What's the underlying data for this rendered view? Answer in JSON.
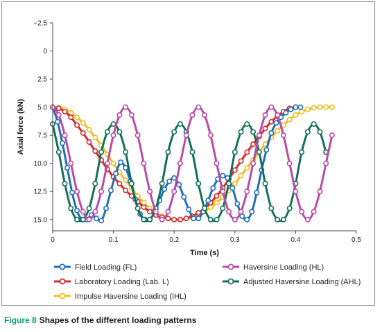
{
  "caption": {
    "label": "Figure 8",
    "text": "Shapes of the different loading patterns"
  },
  "chart_data": {
    "type": "line",
    "xlabel": "Time (s)",
    "ylabel": "Axial force (kN)",
    "xlim": [
      0,
      0.5
    ],
    "ylim": [
      -2.5,
      16.0
    ],
    "y_inverted": true,
    "x_ticks": [
      "0",
      "0.1",
      "0.2",
      "0.3",
      "0.4",
      "0.5"
    ],
    "y_ticks": [
      "−2.5",
      "0",
      "2.5",
      "5.0",
      "7.5",
      "10.0",
      "12.5",
      "15.0"
    ],
    "grid": false,
    "legend_position": "bottom",
    "series": [
      {
        "name": "Field Loading (FL)",
        "color": "#1f6eb5",
        "x": [
          0.0,
          0.008,
          0.016,
          0.024,
          0.032,
          0.04,
          0.048,
          0.056,
          0.064,
          0.072,
          0.08,
          0.088,
          0.096,
          0.104,
          0.112,
          0.12,
          0.128,
          0.136,
          0.144,
          0.152,
          0.16,
          0.168,
          0.176,
          0.184,
          0.192,
          0.2,
          0.208,
          0.216,
          0.224,
          0.232,
          0.24,
          0.248,
          0.256,
          0.264,
          0.272,
          0.28,
          0.288,
          0.296,
          0.304,
          0.312,
          0.32,
          0.328,
          0.336,
          0.344,
          0.352,
          0.36,
          0.368,
          0.376,
          0.384,
          0.392,
          0.4,
          0.408
        ],
        "y": [
          5.0,
          6.3,
          8.2,
          10.4,
          12.6,
          14.2,
          15.0,
          15.0,
          14.6,
          14.9,
          15.1,
          14.0,
          12.4,
          10.9,
          9.9,
          10.4,
          11.6,
          13.2,
          14.5,
          15.0,
          15.0,
          14.3,
          13.3,
          12.3,
          11.6,
          11.3,
          11.9,
          13.0,
          14.1,
          14.9,
          14.9,
          14.3,
          13.3,
          12.2,
          11.4,
          11.1,
          11.3,
          12.2,
          13.6,
          14.7,
          15.0,
          14.3,
          12.6,
          10.6,
          8.8,
          7.3,
          6.4,
          5.9,
          5.5,
          5.2,
          5.0,
          5.0
        ]
      },
      {
        "name": "Laboratory Loading (Lab. L)",
        "color": "#d42a2a",
        "x": [
          0.0,
          0.01,
          0.02,
          0.03,
          0.04,
          0.05,
          0.06,
          0.07,
          0.08,
          0.09,
          0.1,
          0.11,
          0.12,
          0.13,
          0.14,
          0.15,
          0.16,
          0.17,
          0.18,
          0.19,
          0.2,
          0.21,
          0.22,
          0.23,
          0.24,
          0.25,
          0.26,
          0.27,
          0.28,
          0.29,
          0.3,
          0.31,
          0.32,
          0.33,
          0.34,
          0.35,
          0.36,
          0.37,
          0.38,
          0.39,
          0.4
        ],
        "y": [
          5.0,
          5.1,
          5.4,
          5.9,
          6.6,
          7.3,
          8.1,
          8.9,
          9.7,
          10.5,
          11.2,
          11.8,
          12.4,
          12.9,
          13.4,
          13.9,
          14.3,
          14.6,
          14.8,
          14.9,
          15.0,
          15.0,
          14.9,
          14.7,
          14.4,
          14.0,
          13.5,
          12.9,
          12.2,
          11.4,
          10.6,
          9.8,
          9.0,
          8.3,
          7.6,
          6.9,
          6.3,
          5.8,
          5.4,
          5.1,
          5.0
        ]
      },
      {
        "name": "Impulse Haversine Loading (IHL)",
        "color": "#f2be1c",
        "x": [
          0.0,
          0.01,
          0.02,
          0.03,
          0.04,
          0.05,
          0.06,
          0.07,
          0.08,
          0.09,
          0.1,
          0.11,
          0.12,
          0.13,
          0.14,
          0.15,
          0.16,
          0.17,
          0.18,
          0.19,
          0.2,
          0.21,
          0.22,
          0.23,
          0.24,
          0.25,
          0.26,
          0.27,
          0.28,
          0.29,
          0.3,
          0.31,
          0.32,
          0.33,
          0.34,
          0.35,
          0.36,
          0.37,
          0.38,
          0.39,
          0.4,
          0.41,
          0.42,
          0.43,
          0.44,
          0.45,
          0.46
        ],
        "y": [
          5.0,
          5.05,
          5.2,
          5.5,
          5.9,
          6.4,
          7.0,
          7.7,
          8.4,
          9.2,
          10.0,
          10.8,
          11.5,
          12.2,
          12.9,
          13.5,
          14.0,
          14.4,
          14.7,
          14.9,
          15.0,
          15.0,
          14.9,
          14.8,
          14.6,
          14.3,
          13.9,
          13.5,
          13.0,
          12.4,
          11.8,
          11.1,
          10.4,
          9.7,
          9.0,
          8.3,
          7.7,
          7.1,
          6.6,
          6.1,
          5.7,
          5.4,
          5.2,
          5.05,
          5.0,
          5.0,
          5.0
        ]
      },
      {
        "name": "Haversine Loading (HL)",
        "color": "#b94aa6",
        "x": [
          0.0,
          0.01,
          0.02,
          0.03,
          0.04,
          0.05,
          0.06,
          0.07,
          0.08,
          0.09,
          0.1,
          0.11,
          0.12,
          0.13,
          0.14,
          0.15,
          0.16,
          0.17,
          0.18,
          0.19,
          0.2,
          0.21,
          0.22,
          0.23,
          0.24,
          0.25,
          0.26,
          0.27,
          0.28,
          0.29,
          0.3,
          0.31,
          0.32,
          0.33,
          0.34,
          0.35,
          0.36,
          0.37,
          0.38,
          0.39,
          0.4,
          0.41,
          0.42,
          0.43,
          0.44,
          0.45,
          0.46
        ],
        "y": [
          5.0,
          5.7,
          7.5,
          10.0,
          12.5,
          14.3,
          15.0,
          14.3,
          12.5,
          10.0,
          7.5,
          5.7,
          5.0,
          5.7,
          7.5,
          10.0,
          12.5,
          14.3,
          15.0,
          14.3,
          12.5,
          10.0,
          7.5,
          5.7,
          5.0,
          5.7,
          7.5,
          10.0,
          12.5,
          14.3,
          15.0,
          14.3,
          12.5,
          10.0,
          7.5,
          5.7,
          5.0,
          5.7,
          7.5,
          10.0,
          12.5,
          14.3,
          15.0,
          14.3,
          12.5,
          10.0,
          7.5
        ]
      },
      {
        "name": "Adjusted Haversine Loading (AHL)",
        "color": "#11705a",
        "x": [
          0.0,
          0.01,
          0.02,
          0.03,
          0.04,
          0.05,
          0.06,
          0.07,
          0.08,
          0.09,
          0.1,
          0.11,
          0.12,
          0.13,
          0.14,
          0.15,
          0.16,
          0.17,
          0.18,
          0.19,
          0.2,
          0.21,
          0.22,
          0.23,
          0.24,
          0.25,
          0.26,
          0.27,
          0.28,
          0.29,
          0.3,
          0.31,
          0.32,
          0.33,
          0.34,
          0.35,
          0.36,
          0.37,
          0.38,
          0.39,
          0.4,
          0.41,
          0.42,
          0.43,
          0.44,
          0.45
        ],
        "y": [
          6.5,
          9.0,
          11.8,
          14.0,
          15.0,
          15.0,
          14.0,
          11.8,
          9.0,
          7.2,
          6.5,
          7.2,
          9.0,
          11.8,
          14.0,
          15.0,
          15.0,
          14.0,
          11.8,
          9.0,
          7.2,
          6.5,
          7.2,
          9.0,
          11.8,
          14.0,
          15.0,
          15.0,
          14.0,
          11.8,
          9.0,
          7.2,
          6.5,
          7.2,
          9.0,
          11.8,
          14.0,
          15.0,
          15.0,
          14.0,
          11.8,
          9.0,
          7.2,
          6.5,
          7.2,
          9.0
        ]
      }
    ]
  }
}
